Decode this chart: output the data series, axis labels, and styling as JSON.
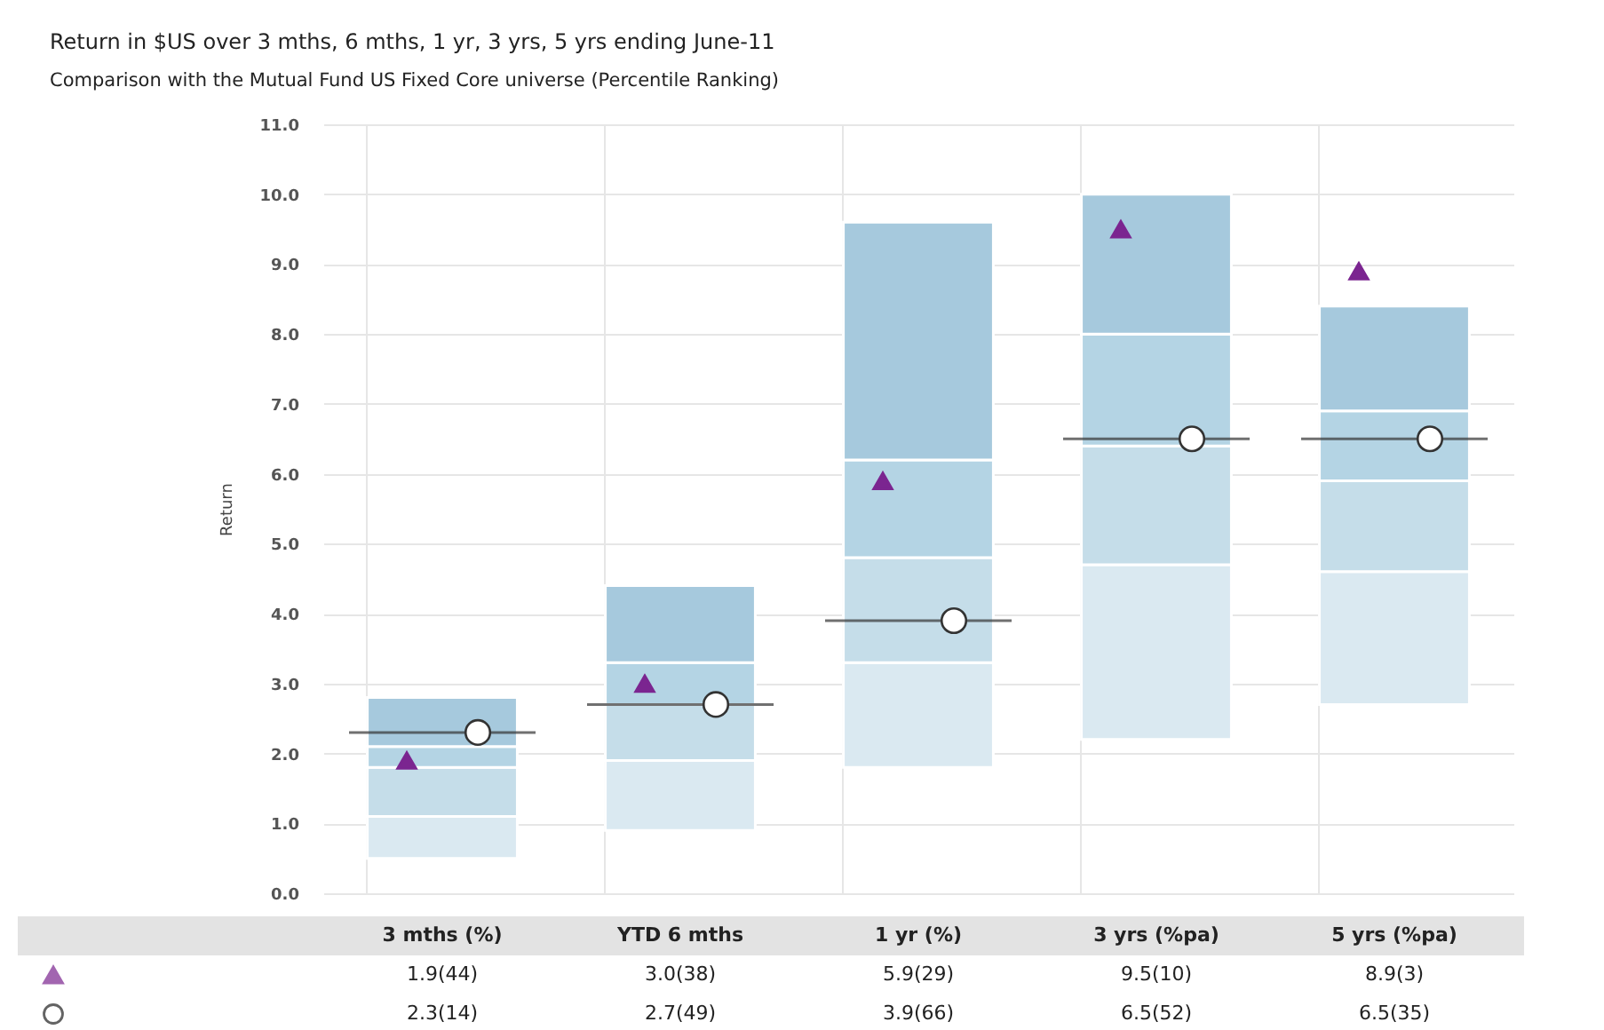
{
  "chart_data": {
    "type": "bar",
    "title": "Return in $US over 3 mths, 6 mths, 1 yr, 3 yrs, 5 yrs ending June-11",
    "subtitle": "Comparison with the Mutual Fund US Fixed Core universe (Percentile Ranking)",
    "ylabel": "Return",
    "categories": [
      "3 mths (%)",
      "YTD 6 mths",
      "1 yr (%)",
      "3 yrs (%pa)",
      "5 yrs (%pa)"
    ],
    "stacked": true,
    "series": [
      {
        "color": "#dae9f1",
        "base": [
          0.5,
          0.9,
          1.8,
          2.2,
          2.7
        ],
        "values": [
          0.6,
          1.0,
          1.5,
          2.5,
          1.9
        ]
      },
      {
        "color": "#c5dde9",
        "values": [
          0.7,
          0.8,
          1.5,
          1.7,
          1.3
        ]
      },
      {
        "color": "#b4d4e4",
        "values": [
          0.3,
          0.6,
          1.4,
          1.6,
          1.0
        ]
      },
      {
        "color": "#a6c9dd",
        "values": [
          0.7,
          1.1,
          3.4,
          2.0,
          1.5
        ]
      },
      {
        "type": "scatter",
        "marker": "triangle",
        "color": "#7b2590",
        "values": [
          1.9,
          3.0,
          5.9,
          9.5,
          8.9
        ],
        "value_labels": [
          "1.9(44)",
          "3.0(38)",
          "5.9(29)",
          "9.5(10)",
          "8.9(3)"
        ]
      },
      {
        "type": "scatter",
        "marker": "circle",
        "color": "#ffffff",
        "values": [
          2.3,
          2.7,
          3.9,
          6.5,
          6.5
        ],
        "value_labels": [
          "2.3(14)",
          "2.7(49)",
          "3.9(66)",
          "6.5(52)",
          "6.5(35)"
        ]
      }
    ],
    "ylim": [
      0,
      11
    ],
    "yticks": [
      {
        "value": 0,
        "label": "0.0"
      },
      {
        "value": 1,
        "label": "1.0"
      },
      {
        "value": 2,
        "label": "2.0"
      },
      {
        "value": 3,
        "label": "3.0"
      },
      {
        "value": 4,
        "label": "4.0"
      },
      {
        "value": 5,
        "label": "5.0"
      },
      {
        "value": 6,
        "label": "6.0"
      },
      {
        "value": 7,
        "label": "7.0"
      },
      {
        "value": 8,
        "label": "8.0"
      },
      {
        "value": 9,
        "label": "9.0"
      },
      {
        "value": 10,
        "label": "10.0"
      },
      {
        "value": 11,
        "label": "11.0"
      }
    ],
    "grid": true
  }
}
